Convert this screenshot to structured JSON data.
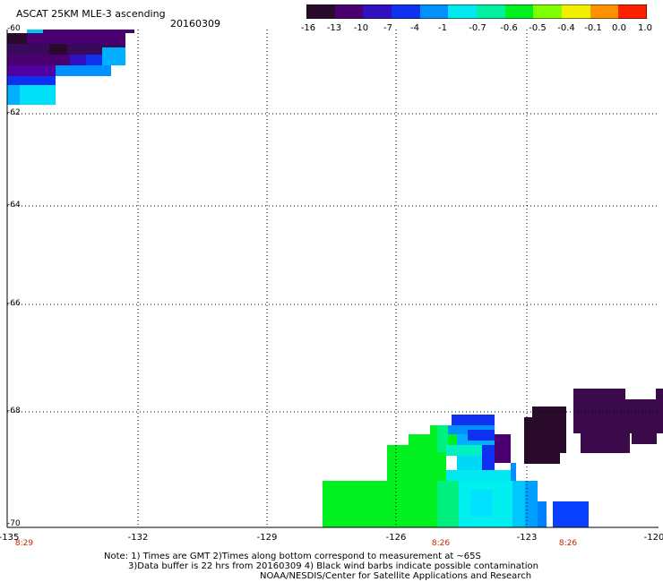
{
  "header": {
    "product_title": "ASCAT 25KM MLE-3 ascending",
    "date": "20160309"
  },
  "colorbar": {
    "ticks": [
      "-16",
      "-13",
      "-10",
      "-7",
      "-4",
      "-1",
      "-0.7",
      "-0.6",
      "-0.5",
      "-0.4",
      "-0.1",
      "0.0",
      "1.0"
    ],
    "colors": [
      "#2a0a2a",
      "#4a0070",
      "#3010c0",
      "#1030f0",
      "#0090ff",
      "#00e8f0",
      "#00f0a0",
      "#00f020",
      "#80ff00",
      "#f0f000",
      "#ff9000",
      "#ff2000"
    ]
  },
  "map": {
    "lat_labels": [
      "-60",
      "-62",
      "-64",
      "-66",
      "-68",
      "-70"
    ],
    "lon_labels": [
      "-135",
      "-132",
      "-129",
      "-126",
      "-123",
      "-120"
    ],
    "time_labels": [
      "8:29",
      "8:26",
      "8:26"
    ]
  },
  "notes": {
    "line1": "Note: 1) Times are GMT 2)Times along bottom correspond to measurement at ~65S",
    "line2": "3)Data buffer is 22 hrs from 20160309 4) Black wind barbs indicate possible contamination",
    "line3": "NOAA/NESDIS/Center for Satellite Applications and Research"
  }
}
